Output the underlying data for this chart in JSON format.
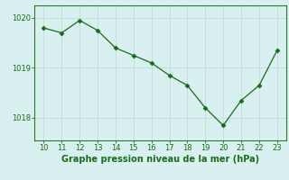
{
  "x": [
    10,
    11,
    12,
    13,
    14,
    15,
    16,
    17,
    18,
    19,
    20,
    21,
    22,
    23
  ],
  "y": [
    1019.8,
    1019.7,
    1019.95,
    1019.75,
    1019.4,
    1019.25,
    1019.1,
    1018.85,
    1018.65,
    1018.2,
    1017.85,
    1018.35,
    1018.65,
    1019.35
  ],
  "line_color": "#1a6b1a",
  "marker": "D",
  "marker_size": 2.5,
  "bg_color": "#d9f0f0",
  "grid_color": "#c8dede",
  "title": "Graphe pression niveau de la mer (hPa)",
  "title_color": "#1a6b1a",
  "title_fontsize": 7,
  "xlim": [
    9.5,
    23.5
  ],
  "ylim": [
    1017.55,
    1020.25
  ],
  "yticks": [
    1018,
    1019,
    1020
  ],
  "xticks": [
    10,
    11,
    12,
    13,
    14,
    15,
    16,
    17,
    18,
    19,
    20,
    21,
    22,
    23
  ],
  "tick_fontsize": 6,
  "tick_color": "#1a6b1a",
  "spine_color": "#2d7a2d"
}
